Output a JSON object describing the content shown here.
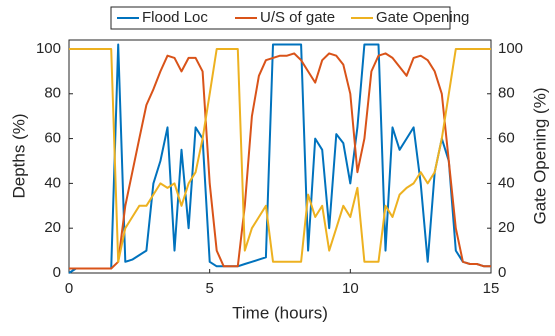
{
  "chart_data": {
    "type": "line",
    "x_label": "Time (hours)",
    "y_label": "Depths (%)",
    "y2_label": "Gate Opening (%)",
    "x": [
      0,
      0.25,
      0.5,
      0.75,
      1,
      1.25,
      1.5,
      1.75,
      2,
      2.25,
      2.5,
      2.75,
      3,
      3.25,
      3.5,
      3.75,
      4,
      4.25,
      4.5,
      4.75,
      5,
      5.25,
      5.5,
      5.75,
      6,
      6.25,
      6.5,
      6.75,
      7,
      7.25,
      7.5,
      7.75,
      8,
      8.25,
      8.5,
      8.75,
      9,
      9.25,
      9.5,
      9.75,
      10,
      10.25,
      10.5,
      10.75,
      11,
      11.25,
      11.5,
      11.75,
      12,
      12.25,
      12.5,
      12.75,
      13,
      13.25,
      13.5,
      13.75,
      14,
      14.25,
      14.5,
      14.75,
      15
    ],
    "series": [
      {
        "name": "Flood Loc",
        "color": "#0072BD",
        "values": [
          0,
          2,
          2,
          2,
          2,
          2,
          2,
          102,
          5,
          6,
          8,
          10,
          40,
          50,
          65,
          10,
          55,
          20,
          65,
          60,
          5,
          3,
          3,
          3,
          3,
          4,
          5,
          6,
          7,
          102,
          102,
          102,
          102,
          102,
          10,
          60,
          55,
          20,
          62,
          58,
          40,
          65,
          102,
          102,
          102,
          10,
          65,
          55,
          60,
          65,
          40,
          5,
          45,
          60,
          50,
          10,
          5,
          4,
          4,
          3,
          3
        ]
      },
      {
        "name": "U/S of gate",
        "color": "#D95319",
        "values": [
          2,
          2,
          2,
          2,
          2,
          2,
          2,
          5,
          30,
          45,
          60,
          75,
          82,
          90,
          97,
          96,
          90,
          96,
          96,
          90,
          40,
          10,
          3,
          3,
          3,
          30,
          70,
          88,
          95,
          96,
          97,
          97,
          98,
          95,
          90,
          85,
          95,
          98,
          97,
          93,
          80,
          45,
          60,
          90,
          97,
          98,
          96,
          92,
          88,
          96,
          97,
          95,
          90,
          80,
          50,
          20,
          5,
          4,
          4,
          3,
          3
        ]
      },
      {
        "name": "Gate Opening",
        "color": "#EDB120",
        "axis": "y2",
        "values": [
          100,
          100,
          100,
          100,
          100,
          100,
          100,
          5,
          20,
          25,
          30,
          30,
          35,
          40,
          38,
          40,
          30,
          40,
          45,
          60,
          80,
          100,
          100,
          100,
          100,
          10,
          20,
          25,
          30,
          5,
          5,
          5,
          5,
          5,
          35,
          25,
          30,
          10,
          20,
          30,
          25,
          38,
          5,
          5,
          5,
          30,
          25,
          35,
          38,
          40,
          45,
          40,
          45,
          60,
          80,
          100,
          100,
          100,
          100,
          100,
          100
        ]
      }
    ],
    "xlim": [
      0,
      15
    ],
    "xticks": [
      0,
      5,
      10,
      15
    ],
    "ylim": [
      0,
      104
    ],
    "yticks": [
      0,
      20,
      40,
      60,
      80,
      100
    ],
    "y2lim": [
      0,
      104
    ],
    "y2ticks": [
      0,
      20,
      40,
      60,
      80,
      100
    ]
  }
}
